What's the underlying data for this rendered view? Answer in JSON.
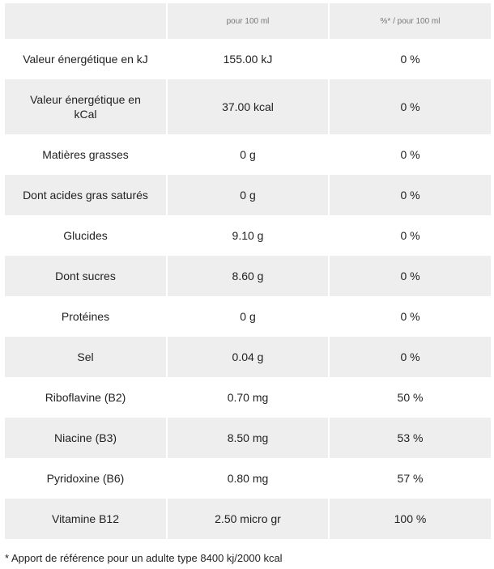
{
  "header": {
    "col1": "",
    "col2": "pour 100 ml",
    "col3": "%* / pour 100 ml"
  },
  "rows": [
    {
      "name": "Valeur énergétique en kJ",
      "value": "155.00 kJ",
      "percent": "0 %"
    },
    {
      "name": "Valeur énergétique en kCal",
      "value": "37.00 kcal",
      "percent": "0 %"
    },
    {
      "name": "Matières grasses",
      "value": "0 g",
      "percent": "0 %"
    },
    {
      "name": "Dont acides gras saturés",
      "value": "0 g",
      "percent": "0 %"
    },
    {
      "name": "Glucides",
      "value": "9.10 g",
      "percent": "0 %"
    },
    {
      "name": "Dont sucres",
      "value": "8.60 g",
      "percent": "0 %"
    },
    {
      "name": "Protéines",
      "value": "0 g",
      "percent": "0 %"
    },
    {
      "name": "Sel",
      "value": "0.04 g",
      "percent": "0 %"
    },
    {
      "name": "Riboflavine (B2)",
      "value": "0.70 mg",
      "percent": "50 %"
    },
    {
      "name": "Niacine (B3)",
      "value": "8.50 mg",
      "percent": "53 %"
    },
    {
      "name": "Pyridoxine (B6)",
      "value": "0.80 mg",
      "percent": "57 %"
    },
    {
      "name": "Vitamine B12",
      "value": "2.50 micro gr",
      "percent": "100 %"
    }
  ],
  "footnote": "* Apport de référence pour un adulte type 8400 kj/2000 kcal"
}
